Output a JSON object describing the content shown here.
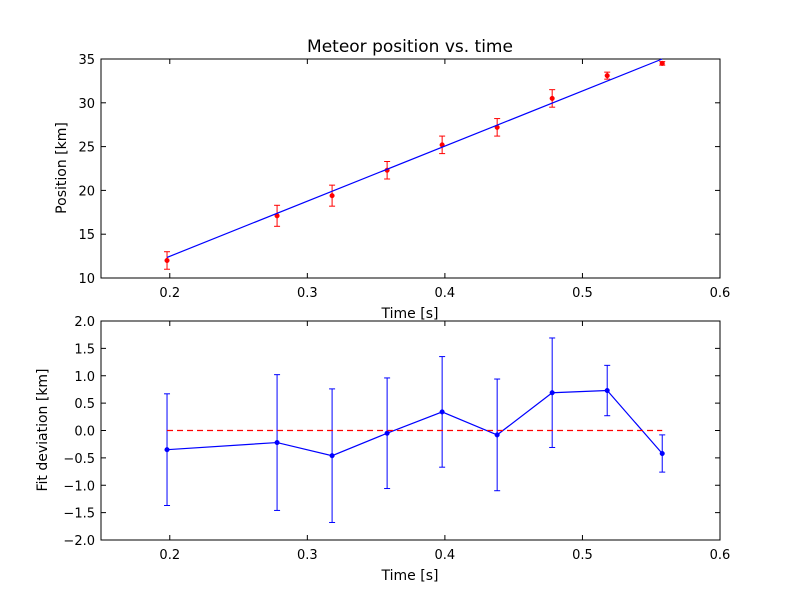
{
  "chart_data": [
    {
      "type": "scatter",
      "title": "Meteor position vs. time",
      "xlabel": "Time [s]",
      "ylabel": "Position [km]",
      "xlim": [
        0.15,
        0.6
      ],
      "ylim": [
        10,
        35
      ],
      "xticks": [
        "0.2",
        "0.3",
        "0.4",
        "0.5",
        "0.6"
      ],
      "yticks": [
        "10",
        "15",
        "20",
        "25",
        "30",
        "35"
      ],
      "grid": false,
      "series": [
        {
          "kind": "points-with-errorbars",
          "color": "#ff0000",
          "x": [
            0.198,
            0.278,
            0.318,
            0.358,
            0.398,
            0.438,
            0.478,
            0.518,
            0.558
          ],
          "y": [
            12.0,
            17.1,
            19.4,
            22.3,
            25.2,
            27.2,
            30.5,
            33.1,
            34.5
          ],
          "yerr": [
            1.0,
            1.2,
            1.2,
            1.0,
            1.0,
            1.0,
            1.0,
            0.4,
            0.2
          ]
        },
        {
          "kind": "fit-line",
          "color": "#0000ff",
          "x": [
            0.198,
            0.558
          ],
          "y": [
            12.35,
            35.0
          ]
        }
      ]
    },
    {
      "type": "line",
      "title": "",
      "xlabel": "Time [s]",
      "ylabel": "Fit deviation [km]",
      "xlim": [
        0.15,
        0.6
      ],
      "ylim": [
        -2.0,
        2.0
      ],
      "xticks": [
        "0.2",
        "0.3",
        "0.4",
        "0.5",
        "0.6"
      ],
      "yticks": [
        "2.0",
        "1.5",
        "1.0",
        "0.5",
        "0.0",
        "−0.5",
        "−1.0",
        "−1.5",
        "−2.0"
      ],
      "grid": false,
      "series": [
        {
          "kind": "line-with-errorbars",
          "color": "#0000ff",
          "x": [
            0.198,
            0.278,
            0.318,
            0.358,
            0.398,
            0.438,
            0.478,
            0.518,
            0.558
          ],
          "y": [
            -0.35,
            -0.22,
            -0.46,
            -0.05,
            0.34,
            -0.08,
            0.69,
            0.73,
            -0.42
          ],
          "yerr": [
            1.02,
            1.24,
            1.22,
            1.01,
            1.01,
            1.02,
            1.0,
            0.46,
            0.34
          ]
        },
        {
          "kind": "zero-reference",
          "color": "#ff0000",
          "style": "dashed",
          "x": [
            0.198,
            0.558
          ],
          "y": [
            0.0,
            0.0
          ]
        }
      ]
    }
  ]
}
